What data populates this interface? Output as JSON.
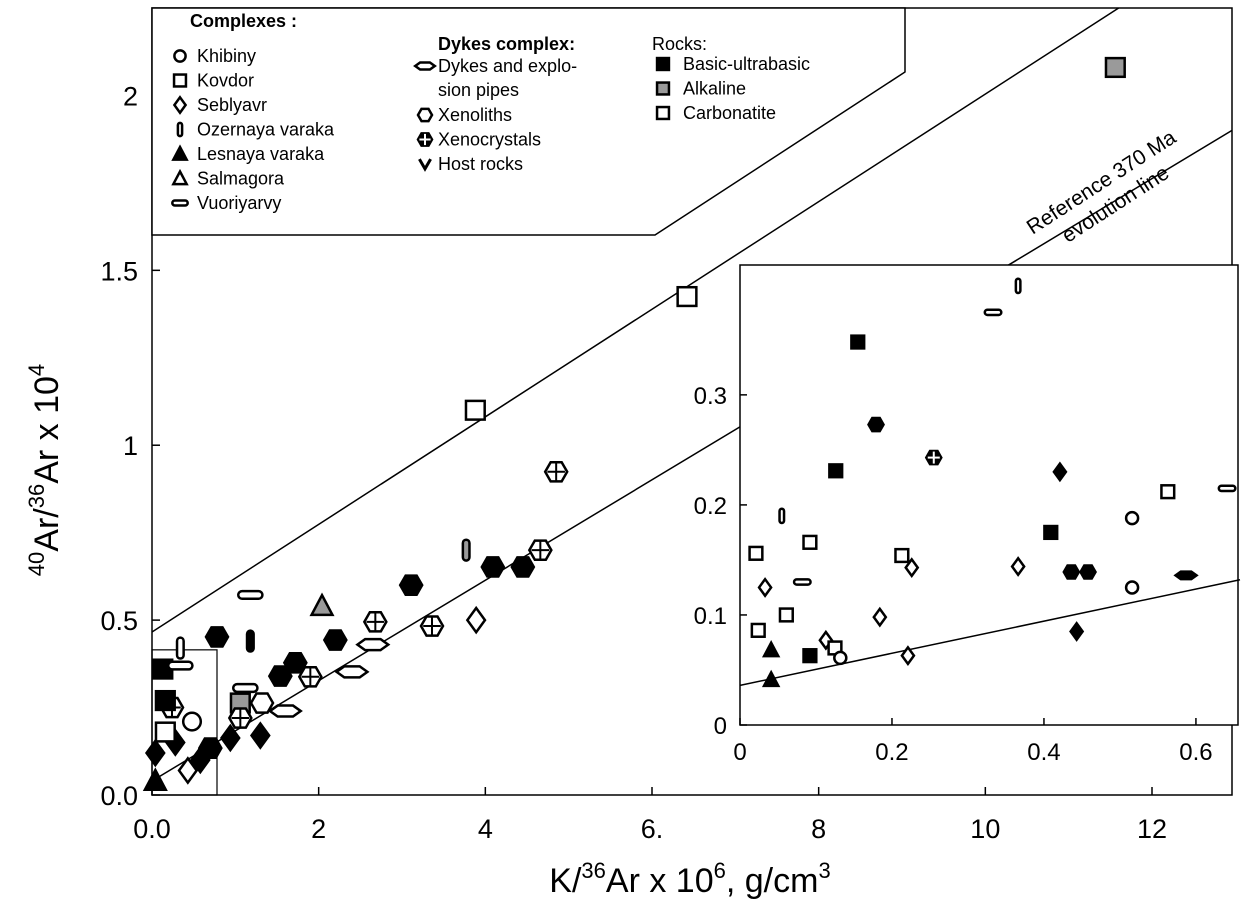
{
  "chart_data": {
    "type": "scatter",
    "x_label_parts": [
      "K/",
      "36",
      "Ar x 10",
      "6",
      ", g/cm",
      "3"
    ],
    "y_label_parts": [
      "40",
      "Ar/",
      "36",
      "Ar x 10",
      "4"
    ],
    "xlim": [
      0,
      12.96
    ],
    "ylim": [
      0,
      2.25
    ],
    "xticks": [
      {
        "value": 0,
        "label": "0.0"
      },
      2,
      4,
      {
        "value": 6,
        "label": "6."
      },
      8,
      10,
      12
    ],
    "yticks": [
      {
        "value": 0,
        "label": "0.0"
      },
      0.5,
      1,
      1.5,
      2
    ],
    "annotation": [
      "Reference 370 Ma",
      "evolution line"
    ],
    "zoom_box": {
      "x": [
        0,
        0.78
      ],
      "y": [
        0,
        0.415
      ]
    },
    "lines": [
      {
        "x": [
          0,
          11.6
        ],
        "y": [
          0.466,
          2.25
        ]
      },
      {
        "x": [
          0,
          12.96
        ],
        "y": [
          0.04,
          1.9
        ]
      }
    ],
    "legend": [
      {
        "title": "Complexes :",
        "items": [
          {
            "label": [
              "Khibiny"
            ],
            "marker": "circle",
            "fill": "white"
          },
          {
            "label": [
              "Kovdor"
            ],
            "marker": "square",
            "fill": "white"
          },
          {
            "label": [
              "Seblyavr"
            ],
            "marker": "diamond",
            "fill": "white"
          },
          {
            "label": [
              "Ozernaya varaka"
            ],
            "marker": "vpill",
            "fill": "white"
          },
          {
            "label": [
              "Lesnaya varaka"
            ],
            "marker": "triangle",
            "fill": "black"
          },
          {
            "label": [
              "Salmagora"
            ],
            "marker": "triangle",
            "fill": "white"
          },
          {
            "label": [
              "Vuoriyarvy"
            ],
            "marker": "hpill",
            "fill": "white"
          }
        ]
      },
      {
        "title": "Dykes complex:",
        "items": [
          {
            "label": [
              "Dykes and explo-",
              "sion pipes"
            ],
            "marker": "lens",
            "fill": "white"
          },
          {
            "label": [
              "Xenoliths"
            ],
            "marker": "hexagon",
            "fill": "white"
          },
          {
            "label": [
              "Xenocrystals"
            ],
            "marker": "hexcross",
            "fill": "black"
          },
          {
            "label": [
              "Host rocks"
            ],
            "marker": "vee",
            "fill": "black"
          }
        ]
      },
      {
        "title": "Rocks:",
        "items": [
          {
            "label": [
              "Basic-ultrabasic"
            ],
            "marker": "square",
            "fill": "black"
          },
          {
            "label": [
              "Alkaline"
            ],
            "marker": "square",
            "fill": "gray"
          },
          {
            "label": [
              "Carbonatite"
            ],
            "marker": "square",
            "fill": "white"
          }
        ]
      }
    ],
    "points": [
      {
        "x": 6.42,
        "y": 1.425,
        "marker": "square",
        "fill": "white"
      },
      {
        "x": 3.88,
        "y": 1.1,
        "marker": "square",
        "fill": "white"
      },
      {
        "x": 11.56,
        "y": 2.08,
        "marker": "square",
        "fill": "gray"
      },
      {
        "x": 4.85,
        "y": 0.924,
        "marker": "hexcross",
        "fill": "white"
      },
      {
        "x": 4.66,
        "y": 0.7,
        "marker": "hexcross",
        "fill": "white"
      },
      {
        "x": 4.09,
        "y": 0.652,
        "marker": "hexagon",
        "fill": "black"
      },
      {
        "x": 4.45,
        "y": 0.652,
        "marker": "hexagon",
        "fill": "black"
      },
      {
        "x": 3.11,
        "y": 0.6,
        "marker": "hexagon",
        "fill": "black"
      },
      {
        "x": 3.77,
        "y": 0.7,
        "marker": "vpill",
        "fill": "gray"
      },
      {
        "x": 3.89,
        "y": 0.5,
        "marker": "diamond",
        "fill": "white"
      },
      {
        "x": 2.04,
        "y": 0.54,
        "marker": "triangle",
        "fill": "gray"
      },
      {
        "x": 2.68,
        "y": 0.495,
        "marker": "hexcross",
        "fill": "white"
      },
      {
        "x": 3.36,
        "y": 0.483,
        "marker": "hexcross",
        "fill": "white"
      },
      {
        "x": 2.65,
        "y": 0.43,
        "marker": "lens",
        "fill": "white"
      },
      {
        "x": 2.4,
        "y": 0.352,
        "marker": "lens",
        "fill": "white"
      },
      {
        "x": 2.2,
        "y": 0.443,
        "marker": "hexagon",
        "fill": "black"
      },
      {
        "x": 1.18,
        "y": 0.572,
        "marker": "hpill",
        "fill": "white"
      },
      {
        "x": 0.78,
        "y": 0.452,
        "marker": "hexagon",
        "fill": "black"
      },
      {
        "x": 1.9,
        "y": 0.338,
        "marker": "hexcross",
        "fill": "white"
      },
      {
        "x": 1.72,
        "y": 0.378,
        "marker": "hexagon",
        "fill": "black"
      },
      {
        "x": 1.54,
        "y": 0.34,
        "marker": "hexagon",
        "fill": "black"
      },
      {
        "x": 1.18,
        "y": 0.44,
        "marker": "vpill",
        "fill": "black"
      },
      {
        "x": 1.3,
        "y": 0.17,
        "marker": "diamond",
        "fill": "black"
      },
      {
        "x": 0.94,
        "y": 0.163,
        "marker": "diamond",
        "fill": "black"
      },
      {
        "x": 1.32,
        "y": 0.263,
        "marker": "hexagon",
        "fill": "white"
      },
      {
        "x": 1.06,
        "y": 0.263,
        "marker": "square",
        "fill": "gray"
      },
      {
        "x": 1.06,
        "y": 0.22,
        "marker": "hexcross",
        "fill": "white"
      },
      {
        "x": 1.12,
        "y": 0.306,
        "marker": "hpill",
        "fill": "white"
      },
      {
        "x": 1.6,
        "y": 0.24,
        "marker": "lens",
        "fill": "white"
      },
      {
        "x": 0.13,
        "y": 0.36,
        "marker": "square",
        "fill": "black"
      },
      {
        "x": 0.34,
        "y": 0.42,
        "marker": "vpill",
        "fill": "white"
      },
      {
        "x": 0.24,
        "y": 0.25,
        "marker": "hexcross",
        "fill": "white"
      },
      {
        "x": 0.48,
        "y": 0.21,
        "marker": "circle",
        "fill": "white"
      },
      {
        "x": 0.28,
        "y": 0.15,
        "marker": "diamond",
        "fill": "black"
      },
      {
        "x": 0.04,
        "y": 0.12,
        "marker": "diamond",
        "fill": "black"
      },
      {
        "x": 0.04,
        "y": 0.04,
        "marker": "triangle",
        "fill": "black"
      },
      {
        "x": 0.43,
        "y": 0.07,
        "marker": "diamond",
        "fill": "white"
      },
      {
        "x": 0.7,
        "y": 0.134,
        "marker": "hexagon",
        "fill": "black"
      },
      {
        "x": 0.16,
        "y": 0.27,
        "marker": "square",
        "fill": "black"
      },
      {
        "x": 0.34,
        "y": 0.37,
        "marker": "hpill",
        "fill": "white"
      },
      {
        "x": 0.16,
        "y": 0.18,
        "marker": "square",
        "fill": "white"
      },
      {
        "x": 0.58,
        "y": 0.1,
        "marker": "diamond",
        "fill": "black"
      }
    ],
    "inset": {
      "xlim": [
        0,
        0.658
      ],
      "ylim": [
        0,
        0.418
      ],
      "xticks": [
        {
          "value": 0,
          "label": "0"
        },
        0.2,
        0.4,
        0.6
      ],
      "yticks": [
        {
          "value": 0,
          "label": "0"
        },
        0.1,
        0.2,
        0.3
      ],
      "line": {
        "x": [
          0,
          0.658
        ],
        "y": [
          0.036,
          0.132
        ]
      },
      "points": [
        {
          "x": 0.333,
          "y": 0.375,
          "marker": "hpill",
          "fill": "white"
        },
        {
          "x": 0.366,
          "y": 0.399,
          "marker": "vpill",
          "fill": "white"
        },
        {
          "x": 0.155,
          "y": 0.348,
          "marker": "square",
          "fill": "black"
        },
        {
          "x": 0.179,
          "y": 0.273,
          "marker": "hexagon",
          "fill": "black"
        },
        {
          "x": 0.255,
          "y": 0.243,
          "marker": "hexcross",
          "fill": "black"
        },
        {
          "x": 0.126,
          "y": 0.231,
          "marker": "square",
          "fill": "black"
        },
        {
          "x": 0.421,
          "y": 0.23,
          "marker": "diamond",
          "fill": "black"
        },
        {
          "x": 0.055,
          "y": 0.19,
          "marker": "vpill",
          "fill": "white"
        },
        {
          "x": 0.021,
          "y": 0.156,
          "marker": "square",
          "fill": "white"
        },
        {
          "x": 0.092,
          "y": 0.166,
          "marker": "square",
          "fill": "white"
        },
        {
          "x": 0.213,
          "y": 0.154,
          "marker": "square",
          "fill": "white"
        },
        {
          "x": 0.563,
          "y": 0.212,
          "marker": "square",
          "fill": "white"
        },
        {
          "x": 0.516,
          "y": 0.188,
          "marker": "circle",
          "fill": "white"
        },
        {
          "x": 0.641,
          "y": 0.215,
          "marker": "hpill",
          "fill": "white"
        },
        {
          "x": 0.082,
          "y": 0.13,
          "marker": "hpill",
          "fill": "white"
        },
        {
          "x": 0.033,
          "y": 0.125,
          "marker": "diamond",
          "fill": "white"
        },
        {
          "x": 0.226,
          "y": 0.143,
          "marker": "diamond",
          "fill": "white"
        },
        {
          "x": 0.366,
          "y": 0.144,
          "marker": "diamond",
          "fill": "white"
        },
        {
          "x": 0.409,
          "y": 0.175,
          "marker": "square",
          "fill": "black"
        },
        {
          "x": 0.436,
          "y": 0.139,
          "marker": "hexagon",
          "fill": "black"
        },
        {
          "x": 0.458,
          "y": 0.139,
          "marker": "hexagon",
          "fill": "black"
        },
        {
          "x": 0.587,
          "y": 0.136,
          "marker": "lens",
          "fill": "black"
        },
        {
          "x": 0.024,
          "y": 0.086,
          "marker": "square",
          "fill": "white"
        },
        {
          "x": 0.061,
          "y": 0.1,
          "marker": "square",
          "fill": "white"
        },
        {
          "x": 0.113,
          "y": 0.077,
          "marker": "diamond",
          "fill": "white"
        },
        {
          "x": 0.184,
          "y": 0.098,
          "marker": "diamond",
          "fill": "white"
        },
        {
          "x": 0.221,
          "y": 0.063,
          "marker": "diamond",
          "fill": "white"
        },
        {
          "x": 0.125,
          "y": 0.07,
          "marker": "square",
          "fill": "white"
        },
        {
          "x": 0.132,
          "y": 0.061,
          "marker": "circle",
          "fill": "white"
        },
        {
          "x": 0.092,
          "y": 0.063,
          "marker": "square",
          "fill": "black"
        },
        {
          "x": 0.041,
          "y": 0.068,
          "marker": "triangle",
          "fill": "black"
        },
        {
          "x": 0.041,
          "y": 0.041,
          "marker": "triangle",
          "fill": "black"
        },
        {
          "x": 0.516,
          "y": 0.125,
          "marker": "circle",
          "fill": "white"
        },
        {
          "x": 0.443,
          "y": 0.085,
          "marker": "diamond",
          "fill": "black"
        }
      ]
    }
  }
}
